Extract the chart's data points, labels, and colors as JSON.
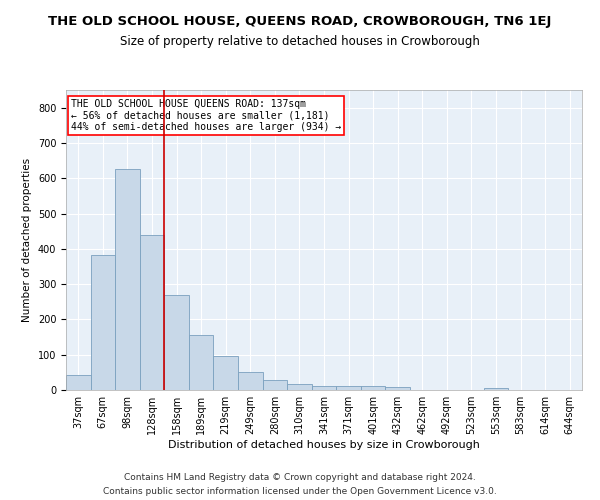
{
  "title1": "THE OLD SCHOOL HOUSE, QUEENS ROAD, CROWBOROUGH, TN6 1EJ",
  "title2": "Size of property relative to detached houses in Crowborough",
  "xlabel": "Distribution of detached houses by size in Crowborough",
  "ylabel": "Number of detached properties",
  "categories": [
    "37sqm",
    "67sqm",
    "98sqm",
    "128sqm",
    "158sqm",
    "189sqm",
    "219sqm",
    "249sqm",
    "280sqm",
    "310sqm",
    "341sqm",
    "371sqm",
    "401sqm",
    "432sqm",
    "462sqm",
    "492sqm",
    "523sqm",
    "553sqm",
    "583sqm",
    "614sqm",
    "644sqm"
  ],
  "values": [
    43,
    382,
    625,
    438,
    268,
    155,
    95,
    52,
    28,
    17,
    12,
    12,
    12,
    8,
    0,
    0,
    0,
    7,
    0,
    0,
    0
  ],
  "bar_color": "#c8d8e8",
  "bar_edge_color": "#7aa0be",
  "bar_edge_width": 0.6,
  "red_line_x": 3.5,
  "annotation_text": "THE OLD SCHOOL HOUSE QUEENS ROAD: 137sqm\n← 56% of detached houses are smaller (1,181)\n44% of semi-detached houses are larger (934) →",
  "annotation_box_color": "white",
  "annotation_box_edge_color": "red",
  "annotation_fontsize": 7.0,
  "red_line_color": "#cc0000",
  "ylim": [
    0,
    850
  ],
  "yticks": [
    0,
    100,
    200,
    300,
    400,
    500,
    600,
    700,
    800
  ],
  "footer1": "Contains HM Land Registry data © Crown copyright and database right 2024.",
  "footer2": "Contains public sector information licensed under the Open Government Licence v3.0.",
  "plot_bg_color": "#e8f0f8",
  "grid_color": "white",
  "title_fontsize": 9.5,
  "subtitle_fontsize": 8.5,
  "ylabel_fontsize": 7.5,
  "xlabel_fontsize": 8.0,
  "tick_fontsize": 7.0,
  "footer_fontsize": 6.5
}
